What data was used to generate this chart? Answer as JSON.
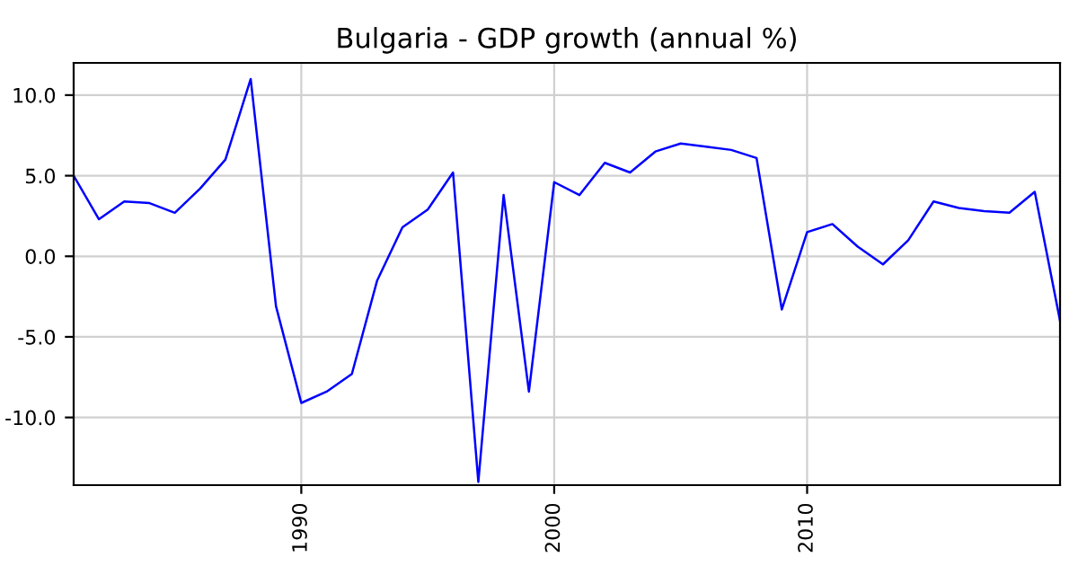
{
  "chart_data": {
    "type": "line",
    "title": "Bulgaria - GDP growth (annual %)",
    "x": [
      1981,
      1982,
      1983,
      1984,
      1985,
      1986,
      1987,
      1988,
      1989,
      1990,
      1991,
      1992,
      1993,
      1994,
      1995,
      1996,
      1997,
      1998,
      1999,
      2000,
      2001,
      2002,
      2003,
      2004,
      2005,
      2006,
      2007,
      2008,
      2009,
      2010,
      2011,
      2012,
      2013,
      2014,
      2015,
      2016,
      2017,
      2018,
      2019,
      2020
    ],
    "series": [
      {
        "color": "#0000ff",
        "values": [
          5.0,
          2.3,
          3.4,
          3.3,
          2.7,
          4.2,
          6.0,
          11.0,
          -3.1,
          -9.1,
          -8.4,
          -7.3,
          -1.5,
          1.8,
          2.9,
          5.2,
          -14.0,
          3.8,
          -8.4,
          4.6,
          3.8,
          5.8,
          5.2,
          6.5,
          7.0,
          6.8,
          6.6,
          6.1,
          -3.3,
          1.5,
          2.0,
          0.6,
          -0.5,
          1.0,
          3.4,
          3.0,
          2.8,
          2.7,
          4.0,
          -4.0
        ]
      }
    ],
    "xlim": [
      1981,
      2020
    ],
    "ylim": [
      -14.2,
      12.0
    ],
    "xticks": [
      1990,
      2000,
      2010
    ],
    "yticks": [
      {
        "value": -10,
        "label": "-10.0"
      },
      {
        "value": -5,
        "label": "-5.0"
      },
      {
        "value": 0,
        "label": "0.0"
      },
      {
        "value": 5,
        "label": "5.0"
      },
      {
        "value": 10,
        "label": "10.0"
      }
    ],
    "grid": true
  }
}
